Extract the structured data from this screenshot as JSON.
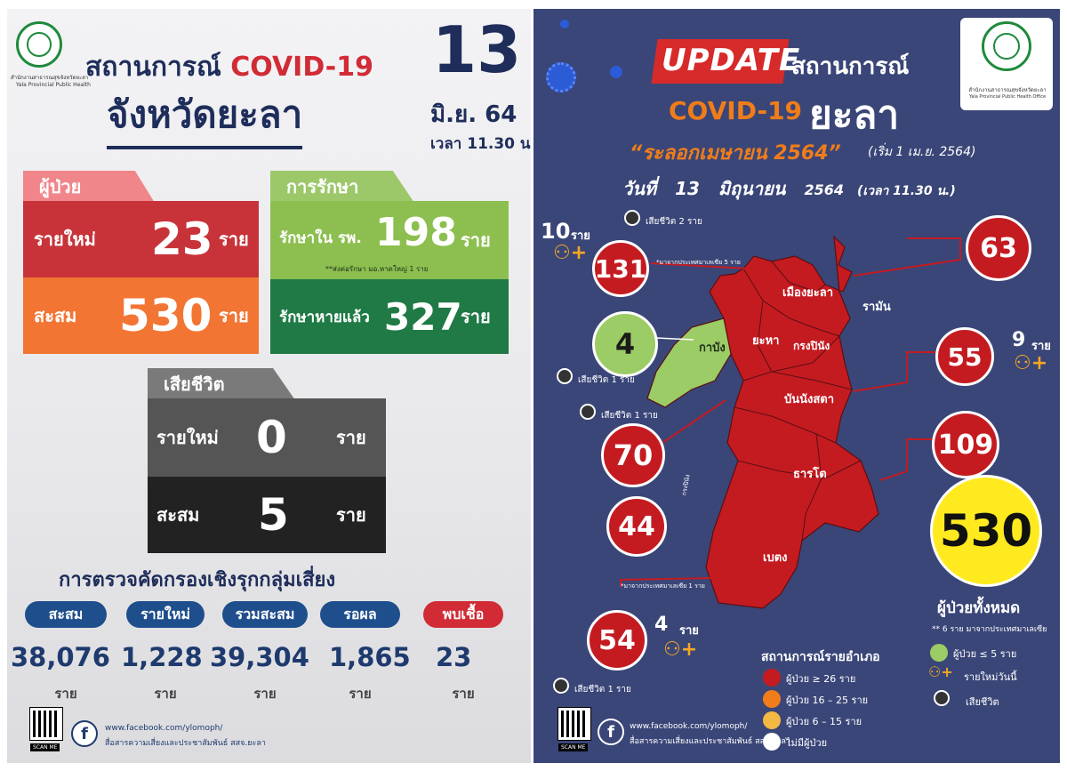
{
  "left": {
    "office_small": "สำนักงานสาธารณสุขจังหวัดยะลา",
    "office_small_en": "Yala Provincial Public Health",
    "title_line1_prefix": "สถานการณ์",
    "title_line1_covid": "COVID-19",
    "title_line2": "จังหวัดยะลา",
    "date_day": "13",
    "date_month": "มิ.ย. 64",
    "time": "เวลา 11.30 น.",
    "patients": {
      "tab": "ผู้ป่วย",
      "new_label": "รายใหม่",
      "new_value": "23",
      "new_unit": "ราย",
      "cum_label": "สะสม",
      "cum_value": "530",
      "cum_unit": "ราย"
    },
    "treatment": {
      "tab": "การรักษา",
      "hosp_label": "รักษาใน รพ.",
      "hosp_value": "198",
      "hosp_unit": "ราย",
      "note": "**ส่งต่อรักษา มอ.หาดใหญ่ 1 ราย",
      "recovered_label": "รักษาหายแล้ว",
      "recovered_value": "327",
      "recovered_unit": "ราย"
    },
    "deaths": {
      "tab": "เสียชีวิต",
      "new_label": "รายใหม่",
      "new_value": "0",
      "new_unit": "ราย",
      "cum_label": "สะสม",
      "cum_value": "5",
      "cum_unit": "ราย"
    },
    "screening": {
      "title": "การตรวจคัดกรองเชิงรุกกลุ่มเสี่ยง",
      "items": [
        {
          "label": "สะสม",
          "value": "38,076",
          "unit": "ราย",
          "color": "#1f4e8c"
        },
        {
          "label": "รายใหม่",
          "value": "1,228",
          "unit": "ราย",
          "color": "#1f4e8c"
        },
        {
          "label": "รวมสะสม",
          "value": "39,304",
          "unit": "ราย",
          "color": "#1f4e8c"
        },
        {
          "label": "รอผล",
          "value": "1,865",
          "unit": "ราย",
          "color": "#1f4e8c"
        },
        {
          "label": "พบเชื้อ",
          "value": "23",
          "unit": "ราย",
          "color": "#d12b35"
        }
      ]
    },
    "scan_label": "SCAN ME",
    "fb_url": "www.facebook.com/ylomoph/",
    "fb_desc": "สื่อสารความเสี่ยงและประชาสัมพันธ์ สสจ.ยะลา"
  },
  "right": {
    "update": "UPDATE",
    "title_suffix": "สถานการณ์",
    "covid": "COVID-19",
    "province": "ยะลา",
    "wave": "“ระลอกเมษายน 2564”",
    "wave_note": "(เริ่ม 1 เม.ย. 2564)",
    "date_prefix": "วันที่",
    "date_day": "13",
    "date_month": "มิถุนายน",
    "date_year": "2564",
    "date_time": "(เวลา 11.30 น.)",
    "office_small": "สำนักงานสาธารณสุขจังหวัดยะลา",
    "office_small_en": "Yala Provincial Public Health Office",
    "districts": {
      "mueang": "เมืองยะลา",
      "raman": "รามัน",
      "kabang": "กาบัง",
      "yaha": "ยะหา",
      "krongpinang": "กรงปินัง",
      "bannangsata": "บันนังสตา",
      "thanto": "ธารโต",
      "betong": "เบตง"
    },
    "callouts": {
      "mueang_value": "131",
      "mueang_new": "10",
      "mueang_new_unit": "ราย",
      "mueang_death": "เสียชีวิต 2 ราย",
      "mueang_note": "*มาจากประเทศมาเลเซีย 5 ราย",
      "raman_value": "63",
      "kabang_value": "4",
      "kabang_death": "เสียชีวิต 1 ราย",
      "bannang_value": "55",
      "bannang_new": "9",
      "bannang_new_unit": "ราย",
      "yaha_value": "70",
      "yaha_death": "เสียชีวิต 1 ราย",
      "thanto_value": "109",
      "krong_value": "44",
      "krong_label": "กรงปินัง",
      "betong_value": "54",
      "betong_new": "4",
      "betong_new_unit": "ราย",
      "betong_note": "*มาจากประเทศมาเลเซีย 1 ราย",
      "betong_death": "เสียชีวิต 1 ราย"
    },
    "total_value": "530",
    "total_label": "ผู้ป่วยทั้งหมด",
    "total_note": "** 6 ราย มาจากประเทศมาเลเซีย",
    "legend": {
      "title": "สถานการณ์รายอำเภอ",
      "items": [
        {
          "label": "ผู้ป่วย ≥ 26 ราย",
          "color": "#c41b21"
        },
        {
          "label": "ผู้ป่วย 16 – 25 ราย",
          "color": "#f07d1a"
        },
        {
          "label": "ผู้ป่วย 6 – 15 ราย",
          "color": "#f4b942"
        },
        {
          "label": "ไม่มีผู้ป่วย",
          "color": "#ffffff"
        }
      ],
      "items_right": [
        {
          "label": "ผู้ป่วย ≤ 5 ราย",
          "color": "#9ccc65"
        },
        {
          "label": "รายใหม่วันนี้",
          "icon": "person-plus-icon"
        },
        {
          "label": "เสียชีวิต",
          "icon": "ribbon-icon"
        }
      ]
    },
    "scan_label": "SCAN ME",
    "fb_url": "www.facebook.com/ylomoph/",
    "fb_desc": "สื่อสารความเสี่ยงและประชาสัมพันธ์ สสจ.ยะลา"
  }
}
